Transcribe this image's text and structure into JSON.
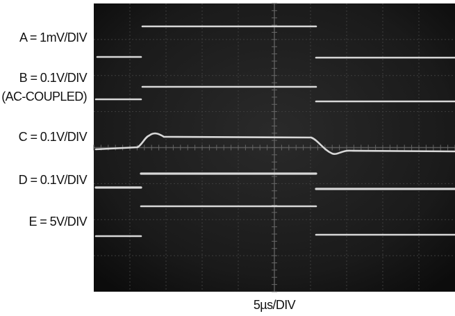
{
  "channel_labels": [
    "A = 1mV/DIV",
    "B = 0.1V/DIV",
    "(AC-COUPLED)",
    "C = 0.1V/DIV",
    "D = 0.1V/DIV",
    "E = 5V/DIV"
  ],
  "time_scale": "5µs/DIV"
}
